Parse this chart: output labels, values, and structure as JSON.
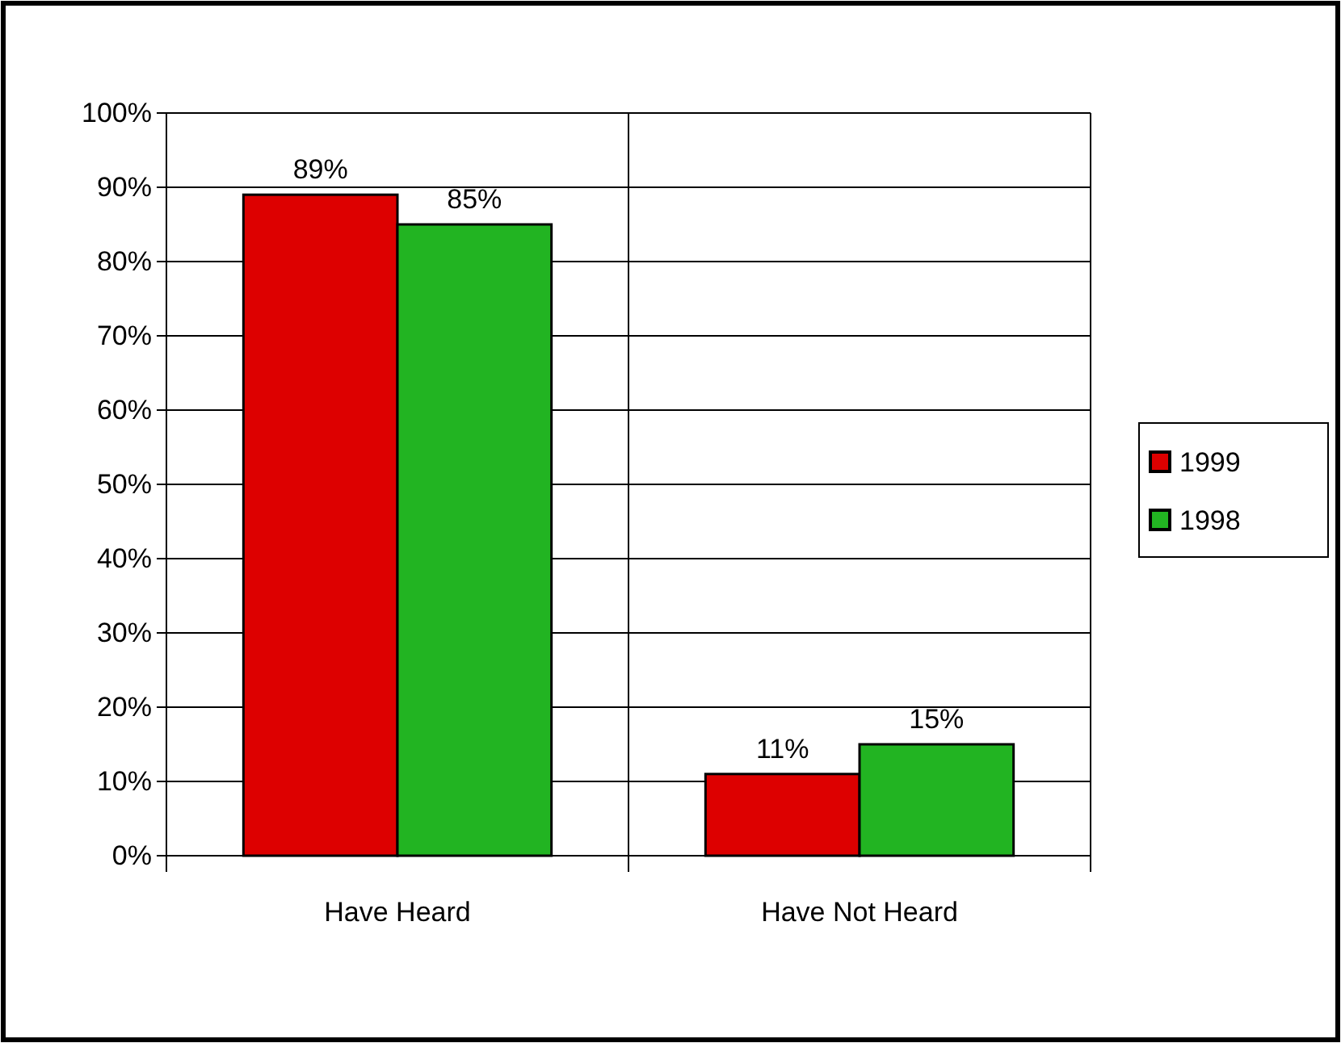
{
  "chart_data": {
    "type": "bar",
    "categories": [
      "Have Heard",
      "Have Not Heard"
    ],
    "series": [
      {
        "name": "1999",
        "color": "#dd0000",
        "values": [
          89,
          11
        ]
      },
      {
        "name": "1998",
        "color": "#22b422",
        "values": [
          85,
          15
        ]
      }
    ],
    "value_labels": [
      [
        "89%",
        "11%"
      ],
      [
        "85%",
        "15%"
      ]
    ],
    "ylim": [
      0,
      100
    ],
    "yticks": [
      {
        "value": 0,
        "label": "0%"
      },
      {
        "value": 10,
        "label": "10%"
      },
      {
        "value": 20,
        "label": "20%"
      },
      {
        "value": 30,
        "label": "30%"
      },
      {
        "value": 40,
        "label": "40%"
      },
      {
        "value": 50,
        "label": "50%"
      },
      {
        "value": 60,
        "label": "60%"
      },
      {
        "value": 70,
        "label": "70%"
      },
      {
        "value": 80,
        "label": "80%"
      },
      {
        "value": 90,
        "label": "90%"
      },
      {
        "value": 100,
        "label": "100%"
      }
    ],
    "grid": "y",
    "legend": "right"
  }
}
